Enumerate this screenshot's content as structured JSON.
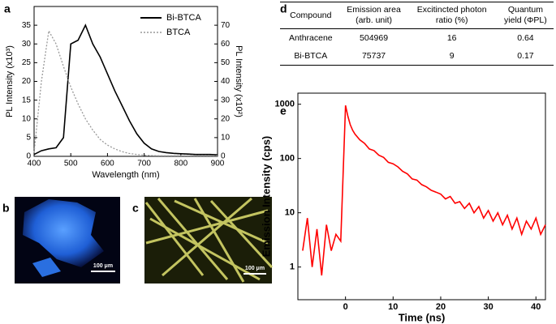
{
  "panel_labels": [
    "a",
    "b",
    "c",
    "d",
    "e"
  ],
  "images": [
    {
      "scale_bar": "100 μm"
    },
    {
      "scale_bar": "100 μm"
    }
  ],
  "table": {
    "header": [
      "Compound",
      "Emission area (arb. unit)",
      "Excitincted photon ratio (%)",
      "Quantum yield (ΦPL)"
    ],
    "rows": [
      [
        "Anthracene",
        "504969",
        "16",
        "0.64"
      ],
      [
        "Bi-BTCA",
        "75737",
        "9",
        "0.17"
      ]
    ]
  },
  "chart_data": [
    {
      "type": "line",
      "x_label": "Wavelength (nm)",
      "y_label": "PL Intensity (x10³)",
      "y2_label": "PL Intensity (x10²)",
      "xlim": [
        400,
        900
      ],
      "xticks": [
        400,
        500,
        600,
        700,
        800,
        900
      ],
      "ylim": [
        0,
        40
      ],
      "yticks": [
        0,
        5,
        10,
        15,
        20,
        25,
        30,
        35
      ],
      "y2lim": [
        0,
        80
      ],
      "y2ticks": [
        0,
        10,
        20,
        30,
        40,
        50,
        60,
        70
      ],
      "legend": "upper right",
      "x": [
        400,
        420,
        440,
        460,
        480,
        500,
        520,
        540,
        560,
        580,
        600,
        620,
        640,
        660,
        680,
        700,
        720,
        740,
        760,
        780,
        800,
        820,
        840,
        860,
        880,
        900
      ],
      "series": [
        {
          "name": "Bi-BTCA",
          "color": "#000000",
          "style": "solid",
          "values": [
            0.5,
            1.5,
            2,
            2.3,
            5,
            30,
            31,
            35,
            30,
            26.5,
            22,
            17.5,
            13.5,
            9.5,
            6,
            3.5,
            2,
            1.3,
            1,
            0.8,
            0.7,
            0.6,
            0.5,
            0.5,
            0.5,
            0.4
          ]
        },
        {
          "name": "BTCA",
          "color": "#999999",
          "style": "dotted",
          "axis": "y2",
          "values": [
            2,
            40,
            67,
            60,
            48,
            37,
            28,
            20,
            14,
            9,
            6,
            4,
            2.5,
            1.5,
            1,
            0.6,
            0.4,
            0.3,
            0.3,
            0.3,
            0.3,
            0.3,
            0.3,
            0.3,
            0.3,
            0.3
          ]
        }
      ]
    },
    {
      "type": "line",
      "x_label": "Time (ns)",
      "y_label": "Emission Intensity (cps)",
      "log_y": true,
      "xlim": [
        -10,
        42
      ],
      "xticks": [
        0,
        10,
        20,
        30,
        40
      ],
      "ylim": [
        0.25,
        1600
      ],
      "yticks": [
        1,
        10,
        100,
        1000
      ],
      "x": [
        -9,
        -8,
        -7,
        -6,
        -5,
        -4,
        -3,
        -2,
        -1,
        0,
        0.5,
        1,
        1.5,
        2,
        3,
        4,
        5,
        6,
        7,
        8,
        9,
        10,
        11,
        12,
        13,
        14,
        15,
        16,
        17,
        18,
        19,
        20,
        21,
        22,
        23,
        24,
        25,
        26,
        27,
        28,
        29,
        30,
        31,
        32,
        33,
        34,
        35,
        36,
        37,
        38,
        39,
        40,
        41,
        42
      ],
      "series": [
        {
          "name": "Bi-BTCA",
          "color": "#ff0000",
          "style": "solid",
          "values": [
            2,
            8,
            1,
            5,
            0.7,
            6,
            2,
            4,
            3,
            950,
            600,
            420,
            330,
            280,
            220,
            190,
            150,
            140,
            115,
            105,
            85,
            80,
            70,
            58,
            52,
            42,
            40,
            33,
            30,
            26,
            24,
            22,
            18,
            20,
            15,
            16,
            12,
            15,
            10,
            13,
            8,
            11,
            7,
            10,
            6,
            9,
            5,
            8,
            4,
            7,
            5,
            8,
            4,
            6
          ]
        }
      ]
    }
  ]
}
